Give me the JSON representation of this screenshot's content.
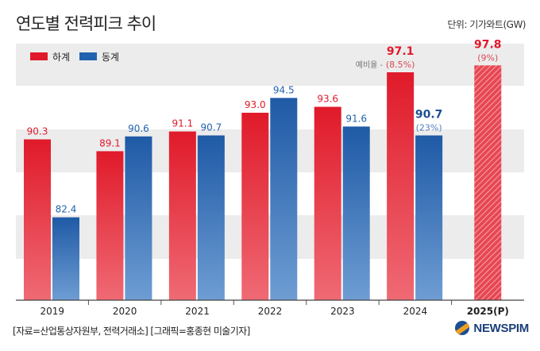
{
  "header": {
    "title": "연도별 전력피크 추이",
    "unit": "단위: 기가와트(GW)"
  },
  "footer": {
    "source": "[자료=산업통상자원부, 전력거래소] [그래픽=홍종현 미술기자]",
    "logo": "NEWSPIM"
  },
  "colors": {
    "limit": "#e01a2a",
    "peak": "#2263b0",
    "reserve_text": "#d84a56",
    "peak_label": "#1e4f95",
    "band": "#ececec"
  },
  "chart_data": {
    "type": "bar",
    "categories": [
      "2019",
      "2020",
      "2021",
      "2022",
      "2023",
      "2024",
      "2025(P)"
    ],
    "series": [
      {
        "name": "하계",
        "values": [
          90.3,
          89.1,
          91.1,
          93.0,
          93.6,
          97.1,
          97.8
        ]
      },
      {
        "name": "동계",
        "values": [
          82.4,
          90.6,
          90.7,
          94.5,
          91.6,
          90.7,
          null
        ]
      }
    ],
    "annotations": [
      {
        "label": "예비율 -",
        "value": "(8.5%)",
        "category": "2024",
        "series": "하계"
      },
      {
        "value": "(23%)",
        "category": "2024",
        "series": "동계"
      },
      {
        "value": "(9%)",
        "category": "2025(P)",
        "series": "하계"
      }
    ],
    "projected_category": "2025(P)",
    "legend_position": "top-left",
    "grid": "alternating horizontal bands",
    "ylim": [
      74,
      100
    ]
  }
}
